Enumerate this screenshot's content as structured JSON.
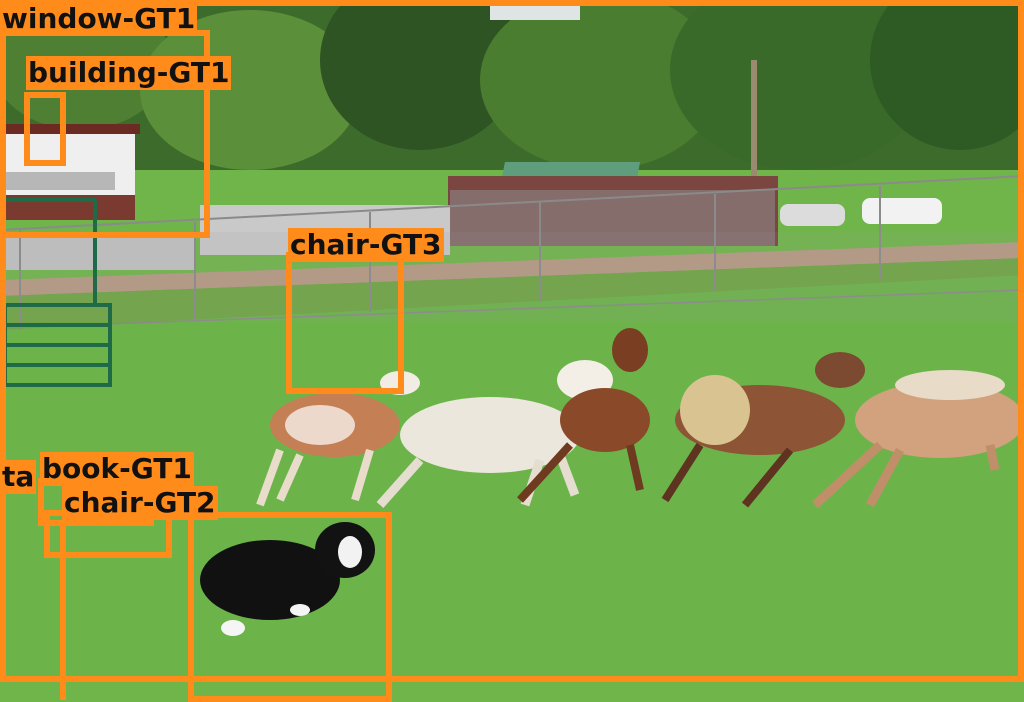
{
  "annotations": [
    {
      "label": "window-GT1"
    },
    {
      "label": "building-GT1"
    },
    {
      "label": "chair-GT3"
    },
    {
      "label": "ta"
    },
    {
      "label": "book-GT1"
    },
    {
      "label": "chair-GT2"
    }
  ]
}
